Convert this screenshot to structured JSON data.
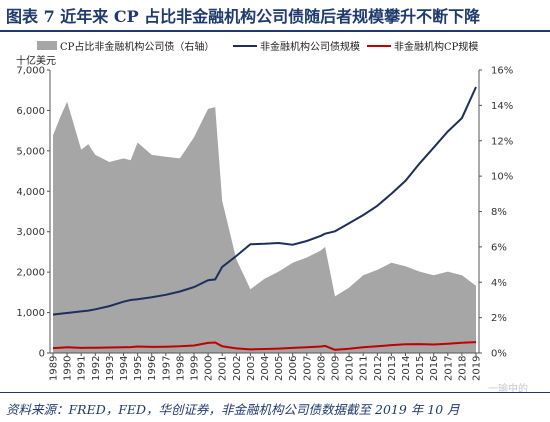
{
  "header": {
    "title": "图表 7   近年来 CP 占比非金融机构公司债随后者规模攀升不断下降"
  },
  "footer": {
    "source": "资料来源：FRED，FED，华创证券，非金融机构公司债数据截至 2019 年 10 月",
    "watermark": "一瑜中的"
  },
  "chart_data": {
    "type": "area",
    "title": "",
    "left_axis_unit": "十亿美元",
    "categories": [
      "1989",
      "1990",
      "1991",
      "1992",
      "1993",
      "1994",
      "1995",
      "1996",
      "1997",
      "1998",
      "1999",
      "2000",
      "2001",
      "2002",
      "2003",
      "2004",
      "2005",
      "2006",
      "2007",
      "2008",
      "2009",
      "2010",
      "2011",
      "2012",
      "2013",
      "2014",
      "2015",
      "2016",
      "2017",
      "2018",
      "2019"
    ],
    "x": [
      1989,
      1989.5,
      1990,
      1991,
      1991.5,
      1992,
      1993,
      1994,
      1994.5,
      1995,
      1996,
      1997,
      1998,
      1999,
      2000,
      2000.5,
      2001,
      2002,
      2003,
      2004,
      2005,
      2006,
      2007,
      2008,
      2008.3,
      2009,
      2010,
      2011,
      2012,
      2013,
      2014,
      2015,
      2016,
      2017,
      2018,
      2019
    ],
    "series": [
      {
        "name": "CP占比非金融机构公司债（右轴）",
        "axis": "right",
        "type": "area",
        "color": "#a6a6a6",
        "values": [
          12.3,
          13.3,
          14.2,
          11.5,
          11.8,
          11.2,
          10.8,
          11.0,
          10.9,
          11.9,
          11.2,
          11.1,
          11.0,
          12.2,
          13.8,
          13.9,
          8.6,
          5.3,
          3.6,
          4.2,
          4.6,
          5.1,
          5.4,
          5.8,
          6.0,
          3.2,
          3.7,
          4.4,
          4.7,
          5.1,
          4.9,
          4.6,
          4.4,
          4.6,
          4.4,
          3.8
        ]
      },
      {
        "name": "非金融机构公司债规模",
        "axis": "left",
        "type": "line",
        "color": "#1f2f5c",
        "values": [
          950,
          970,
          990,
          1030,
          1050,
          1080,
          1160,
          1270,
          1310,
          1330,
          1380,
          1440,
          1520,
          1630,
          1800,
          1820,
          2130,
          2400,
          2690,
          2700,
          2720,
          2680,
          2770,
          2900,
          2950,
          3010,
          3210,
          3410,
          3640,
          3940,
          4260,
          4690,
          5080,
          5480,
          5810,
          6580
        ]
      },
      {
        "name": "非金融机构CP规模",
        "axis": "left",
        "type": "line",
        "color": "#c00000",
        "values": [
          120,
          130,
          140,
          125,
          130,
          130,
          135,
          140,
          145,
          160,
          150,
          155,
          165,
          185,
          250,
          260,
          165,
          115,
          90,
          100,
          110,
          125,
          140,
          160,
          175,
          80,
          105,
          140,
          165,
          195,
          215,
          220,
          210,
          230,
          255,
          270
        ]
      }
    ],
    "y_left": {
      "min": 0,
      "max": 7000,
      "ticks": [
        "0",
        "1,000",
        "2,000",
        "3,000",
        "4,000",
        "5,000",
        "6,000",
        "7,000"
      ]
    },
    "y_right": {
      "min": 0,
      "max": 16,
      "ticks": [
        "0%",
        "2%",
        "4%",
        "6%",
        "8%",
        "10%",
        "12%",
        "14%",
        "16%"
      ]
    },
    "grid": false,
    "legend": "top"
  }
}
